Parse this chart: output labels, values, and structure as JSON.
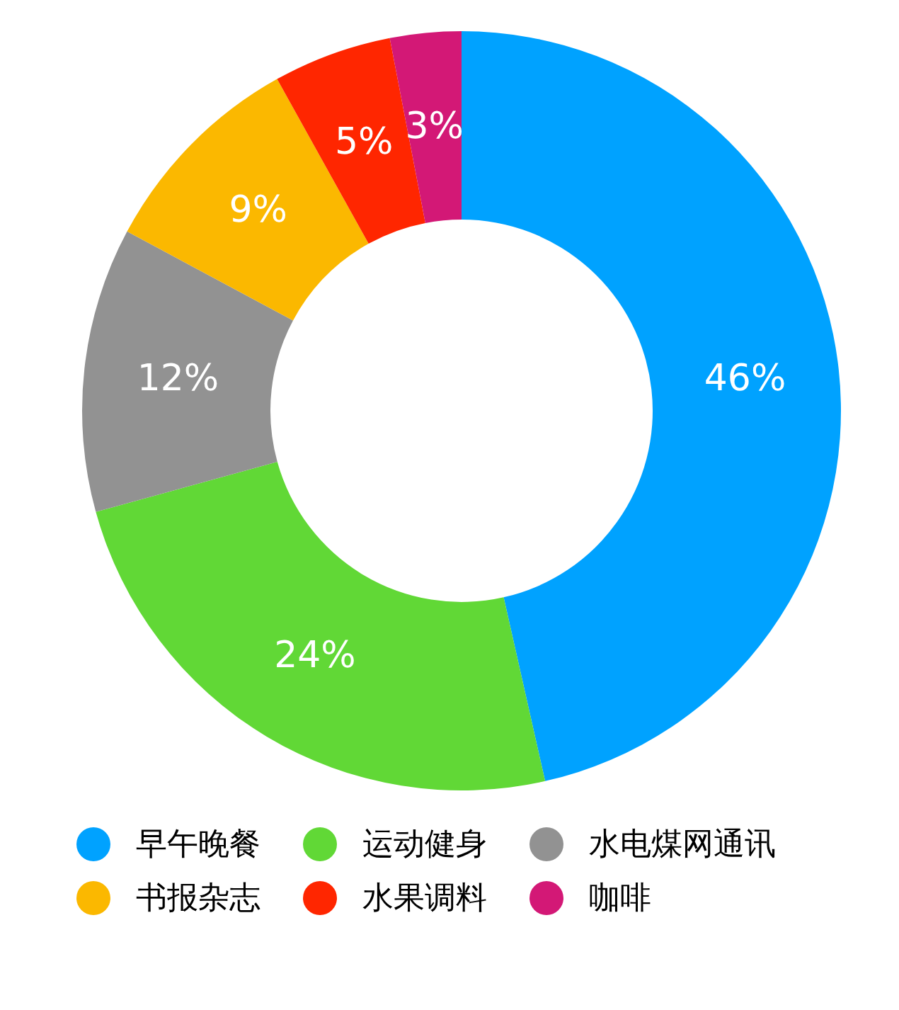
{
  "chart_data": {
    "type": "donut",
    "categories": [
      "早午晚餐",
      "运动健身",
      "水电煤网通讯",
      "书报杂志",
      "水果调料",
      "咖啡"
    ],
    "values": [
      46,
      24,
      12,
      9,
      5,
      3
    ],
    "value_labels": [
      "46%",
      "24%",
      "12%",
      "9%",
      "5%",
      "3%"
    ],
    "colors": [
      "#00a2ff",
      "#61d836",
      "#929292",
      "#fbb800",
      "#ff2600",
      "#d31876"
    ],
    "legend": "bottom"
  }
}
